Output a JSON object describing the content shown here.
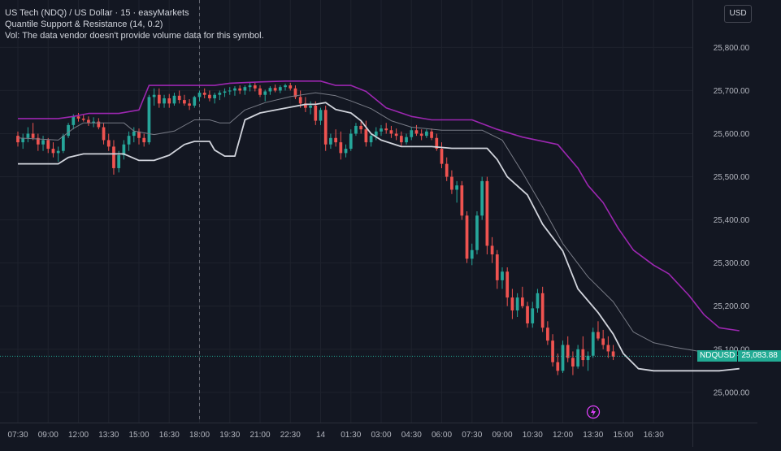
{
  "legend": {
    "title": "US Tech (NDQ) / US Dollar · 15 · easyMarkets",
    "indicator": "Quantile Support & Resistance (14, 0.2)",
    "volume_note": "Vol: The data vendor doesn't provide volume data for this symbol."
  },
  "currency_button": "USD",
  "last_price": {
    "symbol": "NDQUSD",
    "value": "25,083.88"
  },
  "colors": {
    "background": "#131722",
    "up": "#26a69a",
    "down": "#ef5350",
    "resistance": "#9c27b0",
    "support": "#d1d4dc",
    "median": "#787b86",
    "grid": "#1e222d",
    "last_price_line": "#22ab94"
  },
  "icons": {
    "flash": "lightning-icon"
  },
  "chart_data": {
    "type": "candlestick",
    "y_ticks": [
      25000,
      25100,
      25200,
      25300,
      25400,
      25500,
      25600,
      25700,
      25800
    ],
    "y_tick_labels": [
      "25,000.00",
      "25,100.00",
      "25,200.00",
      "25,300.00",
      "25,400.00",
      "25,500.00",
      "25,600.00",
      "25,700.00",
      "25,800.00"
    ],
    "ylim": [
      24930,
      25910
    ],
    "x_ticks": [
      "07:30",
      "09:00",
      "12:00",
      "13:30",
      "15:00",
      "16:30",
      "18:00",
      "19:30",
      "21:00",
      "22:30",
      "14",
      "01:30",
      "03:00",
      "04:30",
      "06:00",
      "07:30",
      "09:00",
      "10:30",
      "12:00",
      "13:30",
      "15:00",
      "16:30"
    ],
    "crosshair_x_label": "18:00",
    "last_price": 25083.88,
    "bars_per_tick": 6,
    "series": [
      {
        "name": "Resistance",
        "color": "#9c27b0",
        "points": [
          [
            0,
            25635
          ],
          [
            8,
            25635
          ],
          [
            11,
            25640
          ],
          [
            14,
            25647
          ],
          [
            20,
            25647
          ],
          [
            24,
            25655
          ],
          [
            26,
            25712
          ],
          [
            39,
            25712
          ],
          [
            42,
            25717
          ],
          [
            48,
            25720
          ],
          [
            53,
            25722
          ],
          [
            60,
            25722
          ],
          [
            63,
            25712
          ],
          [
            66,
            25712
          ],
          [
            69,
            25698
          ],
          [
            73,
            25660
          ],
          [
            78,
            25640
          ],
          [
            82,
            25632
          ],
          [
            90,
            25632
          ],
          [
            95,
            25610
          ],
          [
            100,
            25592
          ],
          [
            107,
            25575
          ],
          [
            111,
            25520
          ],
          [
            113,
            25480
          ],
          [
            116,
            25440
          ],
          [
            119,
            25380
          ],
          [
            122,
            25330
          ],
          [
            126,
            25295
          ],
          [
            129,
            25275
          ],
          [
            133,
            25225
          ],
          [
            136,
            25180
          ],
          [
            139,
            25150
          ],
          [
            143,
            25143
          ]
        ]
      },
      {
        "name": "Support",
        "color": "#d1d4dc",
        "points": [
          [
            0,
            25530
          ],
          [
            8,
            25530
          ],
          [
            10,
            25545
          ],
          [
            13,
            25553
          ],
          [
            21,
            25553
          ],
          [
            24,
            25538
          ],
          [
            27,
            25538
          ],
          [
            30,
            25550
          ],
          [
            33,
            25575
          ],
          [
            35,
            25582
          ],
          [
            38,
            25582
          ],
          [
            39,
            25562
          ],
          [
            41,
            25548
          ],
          [
            43,
            25548
          ],
          [
            45,
            25632
          ],
          [
            48,
            25648
          ],
          [
            52,
            25657
          ],
          [
            57,
            25668
          ],
          [
            59,
            25668
          ],
          [
            61,
            25672
          ],
          [
            63,
            25656
          ],
          [
            66,
            25648
          ],
          [
            68,
            25630
          ],
          [
            70,
            25600
          ],
          [
            72,
            25585
          ],
          [
            76,
            25570
          ],
          [
            82,
            25570
          ],
          [
            86,
            25566
          ],
          [
            93,
            25566
          ],
          [
            95,
            25540
          ],
          [
            97,
            25500
          ],
          [
            101,
            25458
          ],
          [
            104,
            25390
          ],
          [
            108,
            25328
          ],
          [
            111,
            25240
          ],
          [
            115,
            25185
          ],
          [
            118,
            25135
          ],
          [
            120,
            25090
          ],
          [
            123,
            25055
          ],
          [
            126,
            25050
          ],
          [
            131,
            25050
          ],
          [
            136,
            25050
          ],
          [
            139,
            25050
          ],
          [
            143,
            25055
          ]
        ]
      },
      {
        "name": "Median",
        "color": "#787b86",
        "points": [
          [
            0,
            25590
          ],
          [
            8,
            25585
          ],
          [
            11,
            25612
          ],
          [
            13,
            25625
          ],
          [
            21,
            25625
          ],
          [
            23,
            25606
          ],
          [
            27,
            25598
          ],
          [
            31,
            25606
          ],
          [
            35,
            25632
          ],
          [
            38,
            25632
          ],
          [
            40,
            25625
          ],
          [
            42,
            25625
          ],
          [
            45,
            25655
          ],
          [
            49,
            25672
          ],
          [
            54,
            25686
          ],
          [
            59,
            25695
          ],
          [
            63,
            25688
          ],
          [
            66,
            25676
          ],
          [
            70,
            25658
          ],
          [
            74,
            25630
          ],
          [
            78,
            25615
          ],
          [
            84,
            25608
          ],
          [
            92,
            25608
          ],
          [
            96,
            25585
          ],
          [
            100,
            25510
          ],
          [
            104,
            25430
          ],
          [
            108,
            25345
          ],
          [
            113,
            25268
          ],
          [
            118,
            25210
          ],
          [
            122,
            25140
          ],
          [
            126,
            25115
          ],
          [
            130,
            25105
          ],
          [
            135,
            25095
          ],
          [
            140,
            25088
          ],
          [
            143,
            25085
          ]
        ]
      }
    ],
    "candles_note": "o,h,l,c per 15-minute bar",
    "candles": [
      [
        25595,
        25605,
        25570,
        25580
      ],
      [
        25580,
        25600,
        25565,
        25590
      ],
      [
        25590,
        25615,
        25580,
        25600
      ],
      [
        25600,
        25625,
        25585,
        25590
      ],
      [
        25590,
        25600,
        25560,
        25575
      ],
      [
        25575,
        25595,
        25560,
        25585
      ],
      [
        25585,
        25590,
        25555,
        25565
      ],
      [
        25565,
        25580,
        25545,
        25555
      ],
      [
        25555,
        25570,
        25535,
        25560
      ],
      [
        25560,
        25600,
        25555,
        25595
      ],
      [
        25595,
        25625,
        25590,
        25620
      ],
      [
        25620,
        25645,
        25610,
        25640
      ],
      [
        25640,
        25648,
        25628,
        25635
      ],
      [
        25635,
        25645,
        25628,
        25632
      ],
      [
        25632,
        25640,
        25618,
        25625
      ],
      [
        25625,
        25638,
        25615,
        25628
      ],
      [
        25628,
        25636,
        25610,
        25615
      ],
      [
        25615,
        25625,
        25575,
        25585
      ],
      [
        25585,
        25600,
        25560,
        25570
      ],
      [
        25570,
        25585,
        25505,
        25520
      ],
      [
        25520,
        25560,
        25510,
        25550
      ],
      [
        25550,
        25585,
        25540,
        25575
      ],
      [
        25575,
        25605,
        25560,
        25595
      ],
      [
        25595,
        25615,
        25580,
        25605
      ],
      [
        25605,
        25612,
        25575,
        25590
      ],
      [
        25590,
        25600,
        25570,
        25580
      ],
      [
        25580,
        25690,
        25575,
        25685
      ],
      [
        25685,
        25705,
        25665,
        25690
      ],
      [
        25690,
        25705,
        25660,
        25670
      ],
      [
        25670,
        25690,
        25660,
        25682
      ],
      [
        25682,
        25692,
        25660,
        25670
      ],
      [
        25670,
        25695,
        25665,
        25688
      ],
      [
        25688,
        25700,
        25670,
        25678
      ],
      [
        25678,
        25690,
        25665,
        25670
      ],
      [
        25670,
        25680,
        25655,
        25665
      ],
      [
        25665,
        25688,
        25660,
        25685
      ],
      [
        25685,
        25700,
        25675,
        25695
      ],
      [
        25695,
        25705,
        25682,
        25690
      ],
      [
        25690,
        25700,
        25675,
        25682
      ],
      [
        25682,
        25695,
        25670,
        25690
      ],
      [
        25690,
        25700,
        25678,
        25695
      ],
      [
        25695,
        25705,
        25685,
        25698
      ],
      [
        25698,
        25708,
        25690,
        25700
      ],
      [
        25700,
        25710,
        25688,
        25705
      ],
      [
        25705,
        25712,
        25692,
        25700
      ],
      [
        25700,
        25712,
        25690,
        25708
      ],
      [
        25708,
        25718,
        25698,
        25712
      ],
      [
        25712,
        25718,
        25698,
        25705
      ],
      [
        25705,
        25712,
        25685,
        25690
      ],
      [
        25690,
        25702,
        25675,
        25698
      ],
      [
        25698,
        25710,
        25690,
        25706
      ],
      [
        25706,
        25714,
        25696,
        25700
      ],
      [
        25700,
        25712,
        25694,
        25708
      ],
      [
        25708,
        25716,
        25700,
        25712
      ],
      [
        25712,
        25718,
        25700,
        25705
      ],
      [
        25705,
        25712,
        25680,
        25685
      ],
      [
        25685,
        25700,
        25660,
        25670
      ],
      [
        25670,
        25685,
        25650,
        25660
      ],
      [
        25660,
        25675,
        25645,
        25665
      ],
      [
        25665,
        25675,
        25620,
        25630
      ],
      [
        25630,
        25660,
        25620,
        25655
      ],
      [
        25655,
        25665,
        25560,
        25575
      ],
      [
        25575,
        25600,
        25565,
        25590
      ],
      [
        25590,
        25610,
        25570,
        25580
      ],
      [
        25580,
        25605,
        25540,
        25555
      ],
      [
        25555,
        25575,
        25545,
        25565
      ],
      [
        25565,
        25610,
        25560,
        25600
      ],
      [
        25600,
        25625,
        25595,
        25618
      ],
      [
        25618,
        25632,
        25600,
        25610
      ],
      [
        25610,
        25630,
        25570,
        25580
      ],
      [
        25580,
        25600,
        25570,
        25595
      ],
      [
        25595,
        25615,
        25585,
        25605
      ],
      [
        25605,
        25620,
        25595,
        25612
      ],
      [
        25612,
        25625,
        25600,
        25608
      ],
      [
        25608,
        25618,
        25590,
        25600
      ],
      [
        25600,
        25612,
        25585,
        25595
      ],
      [
        25595,
        25605,
        25570,
        25580
      ],
      [
        25580,
        25600,
        25575,
        25592
      ],
      [
        25592,
        25615,
        25585,
        25608
      ],
      [
        25608,
        25620,
        25595,
        25600
      ],
      [
        25600,
        25610,
        25585,
        25595
      ],
      [
        25595,
        25610,
        25590,
        25605
      ],
      [
        25605,
        25612,
        25585,
        25590
      ],
      [
        25590,
        25600,
        25560,
        25565
      ],
      [
        25565,
        25580,
        25520,
        25530
      ],
      [
        25530,
        25545,
        25490,
        25500
      ],
      [
        25500,
        25515,
        25460,
        25470
      ],
      [
        25470,
        25490,
        25440,
        25480
      ],
      [
        25480,
        25490,
        25400,
        25410
      ],
      [
        25410,
        25420,
        25300,
        25310
      ],
      [
        25310,
        25345,
        25295,
        25330
      ],
      [
        25330,
        25420,
        25320,
        25410
      ],
      [
        25410,
        25500,
        25400,
        25490
      ],
      [
        25490,
        25500,
        25320,
        25340
      ],
      [
        25340,
        25360,
        25300,
        25320
      ],
      [
        25320,
        25330,
        25240,
        25260
      ],
      [
        25260,
        25290,
        25240,
        25280
      ],
      [
        25280,
        25290,
        25200,
        25220
      ],
      [
        25220,
        25240,
        25170,
        25190
      ],
      [
        25190,
        25230,
        25175,
        25220
      ],
      [
        25220,
        25245,
        25195,
        25200
      ],
      [
        25200,
        25210,
        25150,
        25160
      ],
      [
        25160,
        25210,
        25150,
        25195
      ],
      [
        25195,
        25240,
        25185,
        25230
      ],
      [
        25230,
        25245,
        25140,
        25150
      ],
      [
        25150,
        25165,
        25110,
        25120
      ],
      [
        25120,
        25135,
        25060,
        25070
      ],
      [
        25070,
        25090,
        25040,
        25050
      ],
      [
        25050,
        25120,
        25045,
        25110
      ],
      [
        25110,
        25130,
        25070,
        25080
      ],
      [
        25080,
        25095,
        25040,
        25060
      ],
      [
        25060,
        25110,
        25055,
        25100
      ],
      [
        25100,
        25130,
        25060,
        25075
      ],
      [
        25075,
        25095,
        25050,
        25085
      ],
      [
        25085,
        25150,
        25080,
        25140
      ],
      [
        25140,
        25165,
        25120,
        25125
      ],
      [
        25125,
        25145,
        25100,
        25110
      ],
      [
        25110,
        25130,
        25080,
        25095
      ],
      [
        25095,
        25110,
        25075,
        25083
      ]
    ]
  }
}
